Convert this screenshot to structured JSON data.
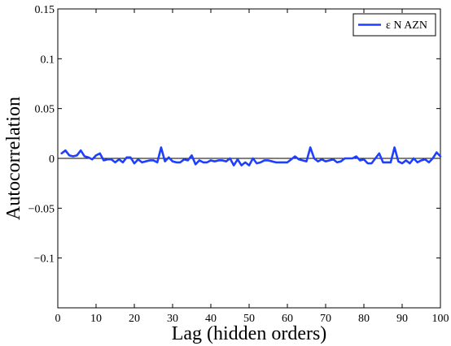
{
  "chart_data": {
    "type": "line",
    "title": "",
    "xlabel": "Lag (hidden orders)",
    "ylabel": "Autocorrelation",
    "xlim": [
      0,
      100
    ],
    "ylim": [
      -0.15,
      0.15
    ],
    "x_ticks": [
      0,
      10,
      20,
      30,
      40,
      50,
      60,
      70,
      80,
      90,
      100
    ],
    "x_tick_labels": [
      "0",
      "10",
      "20",
      "30",
      "40",
      "50",
      "60",
      "70",
      "80",
      "90",
      "100"
    ],
    "y_ticks": [
      0.15,
      0.1,
      0.05,
      0,
      -0.05,
      -0.1
    ],
    "y_tick_labels": [
      "0.15",
      "0.1",
      "0.05",
      "0",
      "−0.05",
      "−0.1"
    ],
    "zero_line": true,
    "grid": false,
    "legend": {
      "placement": "top-right",
      "entries": [
        "ε N AZN"
      ]
    },
    "series": [
      {
        "name": "ε N AZN",
        "color": "#1f3fff",
        "x": [
          1,
          2,
          3,
          4,
          5,
          6,
          7,
          8,
          9,
          10,
          11,
          12,
          13,
          14,
          15,
          16,
          17,
          18,
          19,
          20,
          21,
          22,
          23,
          24,
          25,
          26,
          27,
          28,
          29,
          30,
          31,
          32,
          33,
          34,
          35,
          36,
          37,
          38,
          39,
          40,
          41,
          42,
          43,
          44,
          45,
          46,
          47,
          48,
          49,
          50,
          51,
          52,
          53,
          54,
          55,
          56,
          57,
          58,
          59,
          60,
          61,
          62,
          63,
          64,
          65,
          66,
          67,
          68,
          69,
          70,
          71,
          72,
          73,
          74,
          75,
          76,
          77,
          78,
          79,
          80,
          81,
          82,
          83,
          84,
          85,
          86,
          87,
          88,
          89,
          90,
          91,
          92,
          93,
          94,
          95,
          96,
          97,
          98,
          99,
          100
        ],
        "values": [
          0.005,
          0.008,
          0.003,
          0.002,
          0.003,
          0.008,
          0.002,
          0.001,
          -0.001,
          0.003,
          0.005,
          -0.002,
          -0.001,
          -0.001,
          -0.004,
          -0.001,
          -0.004,
          0.001,
          0.001,
          -0.005,
          -0.001,
          -0.004,
          -0.003,
          -0.002,
          -0.002,
          -0.004,
          0.011,
          -0.003,
          0.001,
          -0.003,
          -0.004,
          -0.004,
          -0.001,
          -0.002,
          0.003,
          -0.006,
          -0.002,
          -0.004,
          -0.004,
          -0.002,
          -0.003,
          -0.002,
          -0.002,
          -0.003,
          0.0,
          -0.007,
          -0.001,
          -0.007,
          -0.004,
          -0.007,
          0.0,
          -0.005,
          -0.004,
          -0.002,
          -0.002,
          -0.003,
          -0.004,
          -0.004,
          -0.004,
          -0.004,
          -0.001,
          0.002,
          -0.001,
          -0.002,
          -0.003,
          0.011,
          0.0,
          -0.003,
          -0.001,
          -0.003,
          -0.002,
          -0.001,
          -0.004,
          -0.003,
          0.0,
          0.0,
          0.0,
          0.002,
          -0.002,
          -0.001,
          -0.005,
          -0.005,
          0.0,
          0.005,
          -0.004,
          -0.004,
          -0.004,
          0.011,
          -0.003,
          -0.005,
          -0.002,
          -0.005,
          0.0,
          -0.004,
          -0.002,
          -0.001,
          -0.004,
          0.0,
          0.006,
          0.002
        ]
      }
    ]
  }
}
